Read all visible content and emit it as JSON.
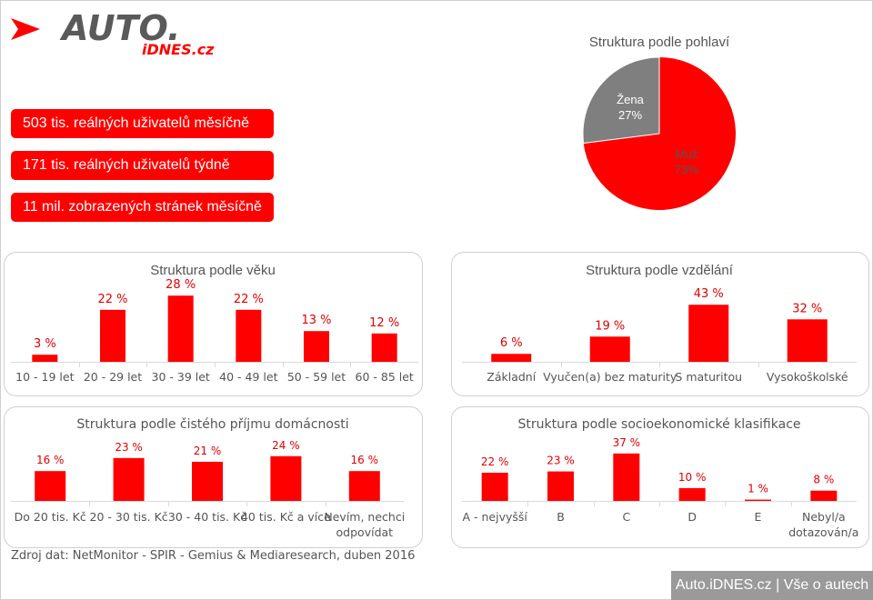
{
  "brand": {
    "logo_main": "AUTO.",
    "logo_sub": "iDNES.cz",
    "accent": "#ff0000",
    "gray": "#7f7f7f"
  },
  "stats": [
    "503 tis. reálných uživatelů měsíčně",
    "171 tis. reálných uživatelů týdně",
    "11 mil. zobrazených stránek měsíčně"
  ],
  "source": "Zdroj dat: NetMonitor - SPIR - Gemius & Mediaresearch, duben 2016",
  "footer": {
    "site": "Auto.iDNES.cz",
    "separator": "|",
    "tagline": "Vše o autech"
  },
  "chart_data": [
    {
      "type": "pie",
      "title": "Struktura podle pohlaví",
      "slices": [
        {
          "label": "Žena",
          "value": 27,
          "value_label": "27%",
          "color": "#7f7f7f"
        },
        {
          "label": "Muž",
          "value": 73,
          "value_label": "73%",
          "color": "#ff0000"
        }
      ]
    },
    {
      "type": "bar",
      "title": "Struktura podle věku",
      "categories": [
        "10 - 19 let",
        "20 - 29 let",
        "30 - 39 let",
        "40 - 49 let",
        "50 - 59 let",
        "60 - 85 let"
      ],
      "values": [
        3,
        22,
        28,
        22,
        13,
        12
      ],
      "value_labels": [
        "3 %",
        "22 %",
        "28 %",
        "22 %",
        "13 %",
        "12 %"
      ]
    },
    {
      "type": "bar",
      "title": "Struktura podle vzdělání",
      "categories": [
        "Základní",
        "Vyučen(a) bez maturity",
        "S maturitou",
        "Vysokoškolské"
      ],
      "values": [
        6,
        19,
        43,
        32
      ],
      "value_labels": [
        "6 %",
        "19 %",
        "43 %",
        "32 %"
      ]
    },
    {
      "type": "bar",
      "title": "Struktura podle čistého příjmu domácnosti",
      "categories": [
        [
          "Do 20 tis. Kč"
        ],
        [
          "20 - 30 tis. Kč"
        ],
        [
          "30 - 40 tis. Kč"
        ],
        [
          "40 tis. Kč a více"
        ],
        [
          "Nevím, nechci",
          "odpovídat"
        ]
      ],
      "values": [
        16,
        23,
        21,
        24,
        16
      ],
      "value_labels": [
        "16 %",
        "23 %",
        "21 %",
        "24 %",
        "16 %"
      ]
    },
    {
      "type": "bar",
      "title": "Struktura podle socioekonomické klasifikace",
      "categories": [
        [
          "A - nejvyšší"
        ],
        [
          "B"
        ],
        [
          "C"
        ],
        [
          "D"
        ],
        [
          "E"
        ],
        [
          "Nebyl/a",
          "dotazován/a"
        ]
      ],
      "values": [
        22,
        23,
        37,
        10,
        1,
        8
      ],
      "value_labels": [
        "22 %",
        "23 %",
        "37 %",
        "10 %",
        "1 %",
        "8 %"
      ]
    }
  ]
}
